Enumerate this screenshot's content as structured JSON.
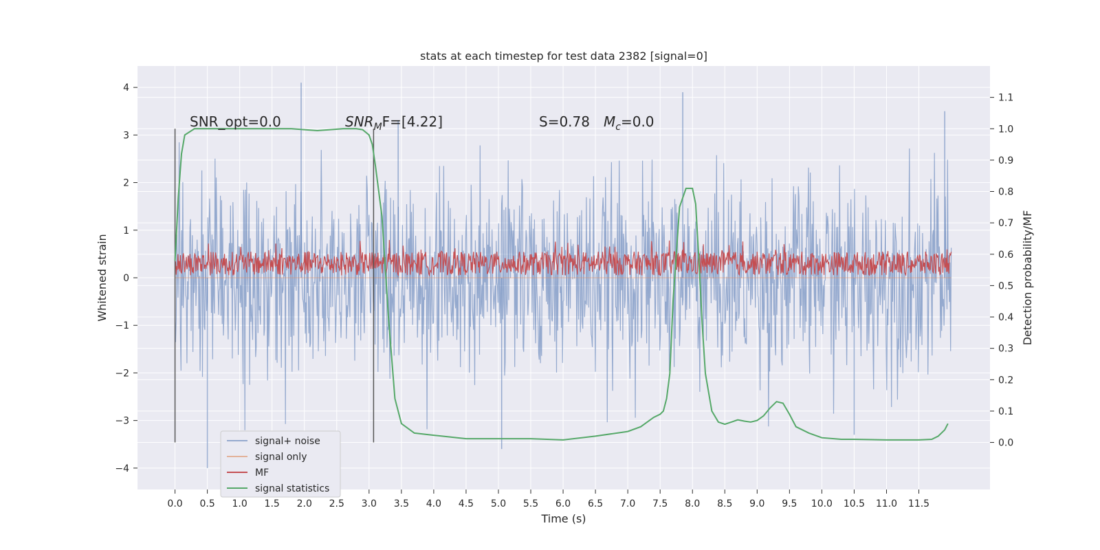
{
  "chart_data": {
    "type": "line",
    "title": "stats at each timestep for test data 2382 [signal=0]",
    "xlabel": "Time (s)",
    "ylabel": "Whitened strain",
    "ylabel_right": "Detection probability/MF",
    "xlim": [
      -0.58,
      12.6
    ],
    "ylim": [
      -4.45,
      4.45
    ],
    "ylim_right": [
      -0.15,
      1.2
    ],
    "x_ticks": [
      "0.0",
      "0.5",
      "1.0",
      "1.5",
      "2.0",
      "2.5",
      "3.0",
      "3.5",
      "4.0",
      "4.5",
      "5.0",
      "5.5",
      "6.0",
      "6.5",
      "7.0",
      "7.5",
      "8.0",
      "8.5",
      "9.0",
      "9.5",
      "10.0",
      "10.5",
      "11.0",
      "11.5"
    ],
    "y_ticks": [
      "4",
      "3",
      "2",
      "1",
      "0",
      "−1",
      "−2",
      "−3",
      "−4"
    ],
    "y_ticks_right": [
      "1.1",
      "1.0",
      "0.9",
      "0.8",
      "0.7",
      "0.6",
      "0.5",
      "0.4",
      "0.3",
      "0.2",
      "0.1",
      "0.0"
    ],
    "grid": true,
    "legend_position": "lower-left",
    "annotations": {
      "snr_opt": "SNR_opt=0.0",
      "snr_mf_prefix": "SNR",
      "snr_mf_sub": "M",
      "snr_mf_suffix": "F=[4.22]",
      "s_label": "S=0.78",
      "mc_label": "M",
      "mc_sub": "c",
      "mc_value": "=0.0"
    },
    "markers_x": [
      0.0,
      3.07
    ],
    "series": [
      {
        "name": "signal+ noise",
        "color": "#4c72b0",
        "axis": "left",
        "x_range": [
          0.0,
          12.0
        ],
        "typical_range": [
          -2.5,
          2.5
        ],
        "spikes": [
          [
            1.95,
            4.1
          ],
          [
            0.5,
            -4.0
          ],
          [
            7.85,
            3.9
          ],
          [
            5.05,
            -3.6
          ],
          [
            10.5,
            -3.3
          ],
          [
            3.45,
            3.3
          ],
          [
            11.9,
            3.5
          ]
        ]
      },
      {
        "name": "signal only",
        "color": "#dd8452",
        "axis": "left",
        "x": [
          0.0,
          12.0
        ],
        "y": [
          0.0,
          0.0
        ]
      },
      {
        "name": "MF",
        "color": "#c44e52",
        "axis": "left",
        "x_range": [
          0.0,
          12.0
        ],
        "typical_range": [
          0.05,
          0.55
        ]
      },
      {
        "name": "signal statistics",
        "color": "#55a868",
        "axis": "right",
        "x": [
          0.0,
          0.05,
          0.1,
          0.15,
          0.3,
          0.6,
          1.0,
          1.5,
          1.8,
          2.0,
          2.2,
          2.4,
          2.6,
          2.8,
          2.9,
          3.0,
          3.05,
          3.1,
          3.2,
          3.3,
          3.4,
          3.5,
          3.7,
          4.0,
          4.5,
          5.0,
          5.5,
          6.0,
          6.5,
          7.0,
          7.2,
          7.4,
          7.5,
          7.55,
          7.6,
          7.65,
          7.7,
          7.8,
          7.9,
          8.0,
          8.05,
          8.1,
          8.15,
          8.2,
          8.3,
          8.4,
          8.5,
          8.6,
          8.7,
          8.8,
          8.9,
          9.0,
          9.1,
          9.2,
          9.3,
          9.4,
          9.5,
          9.6,
          9.8,
          10.0,
          10.3,
          10.5,
          11.0,
          11.5,
          11.7,
          11.8,
          11.9,
          11.95
        ],
        "y": [
          0.58,
          0.78,
          0.92,
          0.98,
          1.0,
          1.0,
          1.0,
          1.0,
          1.0,
          0.997,
          0.994,
          0.997,
          1.0,
          1.0,
          0.997,
          0.98,
          0.95,
          0.88,
          0.72,
          0.4,
          0.14,
          0.06,
          0.03,
          0.023,
          0.012,
          0.012,
          0.012,
          0.008,
          0.02,
          0.035,
          0.05,
          0.08,
          0.09,
          0.1,
          0.14,
          0.22,
          0.45,
          0.75,
          0.81,
          0.81,
          0.76,
          0.58,
          0.38,
          0.22,
          0.1,
          0.065,
          0.058,
          0.065,
          0.072,
          0.068,
          0.065,
          0.07,
          0.085,
          0.11,
          0.13,
          0.125,
          0.09,
          0.05,
          0.03,
          0.015,
          0.01,
          0.01,
          0.008,
          0.008,
          0.01,
          0.02,
          0.04,
          0.06
        ]
      }
    ]
  }
}
